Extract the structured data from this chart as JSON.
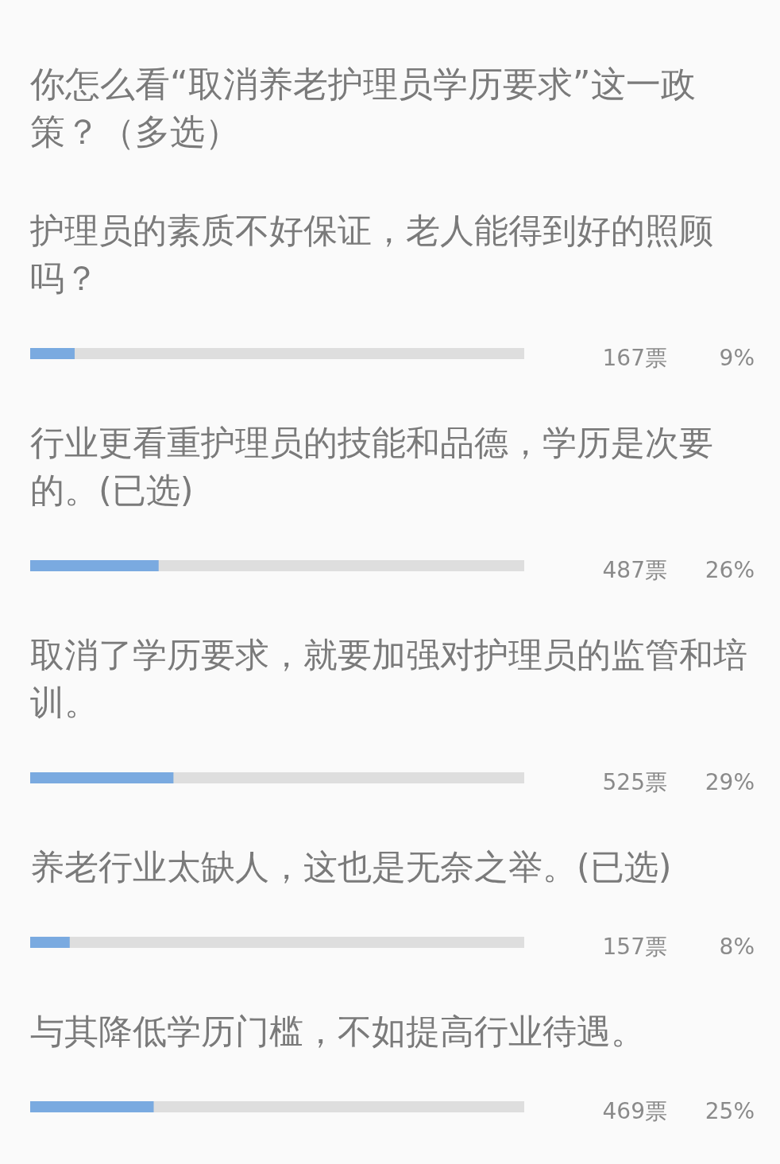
{
  "chart_data": {
    "type": "bar",
    "orientation": "horizontal",
    "title": "你怎么看“取消养老护理员学历要求”这一政策？（多选）",
    "categories": [
      "护理员的素质不好保证，老人能得到好的照顾吗？",
      "行业更看重护理员的技能和品德，学历是次要的。(已选)",
      "取消了学历要求，就要加强对护理员的监管和培训。",
      "养老行业太缺人，这也是无奈之举。(已选)",
      "与其降低学历门槛，不如提高行业待遇。"
    ],
    "values": [
      9,
      26,
      29,
      8,
      25
    ],
    "color": "#7aaae0",
    "xlim": [
      0,
      100
    ],
    "tick_labels": "y",
    "value_labels": [
      "9%",
      "26%",
      "29%",
      "8%",
      "25%"
    ],
    "annotations": [
      "167票",
      "487票",
      "525票",
      "157票",
      "469票"
    ]
  }
}
